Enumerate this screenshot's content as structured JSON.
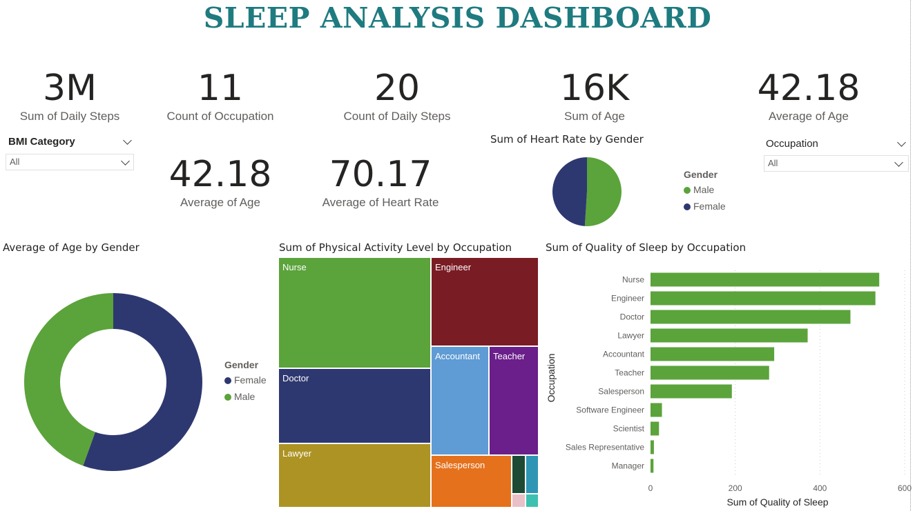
{
  "header": {
    "title": "SLEEP ANALYSIS DASHBOARD"
  },
  "kpis": [
    {
      "value": "3M",
      "label": "Sum of Daily Steps"
    },
    {
      "value": "11",
      "label": "Count of Occupation"
    },
    {
      "value": "20",
      "label": "Count of Daily Steps"
    },
    {
      "value": "16K",
      "label": "Sum of Age"
    },
    {
      "value": "42.18",
      "label": "Average of Age"
    },
    {
      "value": "42.18",
      "label": "Average of Age"
    },
    {
      "value": "70.17",
      "label": "Average of Heart Rate"
    }
  ],
  "slicers": {
    "bmi": {
      "title": "BMI Category",
      "value": "All"
    },
    "occupation": {
      "title": "Occupation",
      "value": "All"
    }
  },
  "colors": {
    "male": "#5ba33b",
    "female": "#2e3870",
    "bar": "#5ba33b",
    "title": "#1e7b80"
  },
  "heart_pie": {
    "title": "Sum of Heart Rate by Gender",
    "legend_title": "Gender",
    "legend": [
      "Male",
      "Female"
    ]
  },
  "age_donut": {
    "title": "Average of Age by Gender",
    "legend_title": "Gender",
    "legend": [
      "Female",
      "Male"
    ]
  },
  "treemap": {
    "title": "Sum of Physical Activity Level by Occupation",
    "labels": [
      "Nurse",
      "Engineer",
      "Doctor",
      "Accountant",
      "Teacher",
      "Lawyer",
      "Salesperson"
    ]
  },
  "bar_chart": {
    "title": "Sum of Quality of Sleep by Occupation",
    "ylabel": "Occupation",
    "xlabel": "Sum of Quality of Sleep"
  },
  "chart_data": [
    {
      "type": "pie",
      "title": "Sum of Heart Rate by Gender",
      "categories": [
        "Male",
        "Female"
      ],
      "values": [
        51,
        49
      ],
      "colors": [
        "#5ba33b",
        "#2e3870"
      ]
    },
    {
      "type": "pie",
      "title": "Average of Age by Gender",
      "donut": true,
      "categories": [
        "Female",
        "Male"
      ],
      "values": [
        55.5,
        44.5
      ],
      "colors": [
        "#2e3870",
        "#5ba33b"
      ]
    },
    {
      "type": "treemap",
      "title": "Sum of Physical Activity Level by Occupation",
      "categories": [
        "Nurse",
        "Doctor",
        "Lawyer",
        "Engineer",
        "Accountant",
        "Teacher",
        "Salesperson"
      ],
      "colors": [
        "#5ba33b",
        "#2e3870",
        "#ad9324",
        "#7a1c24",
        "#5f9bd4",
        "#6a1f8a",
        "#e5711d"
      ]
    },
    {
      "type": "bar",
      "orientation": "horizontal",
      "title": "Sum of Quality of Sleep by Occupation",
      "categories": [
        "Nurse",
        "Engineer",
        "Doctor",
        "Lawyer",
        "Accountant",
        "Teacher",
        "Salesperson",
        "Software Engineer",
        "Scientist",
        "Sales Representative",
        "Manager"
      ],
      "values": [
        540,
        531,
        472,
        371,
        292,
        280,
        192,
        27,
        20,
        8,
        7
      ],
      "xlabel": "Sum of Quality of Sleep",
      "ylabel": "Occupation",
      "xlim": [
        0,
        600
      ],
      "xticks": [
        0,
        200,
        400,
        600
      ],
      "grid": true
    }
  ]
}
